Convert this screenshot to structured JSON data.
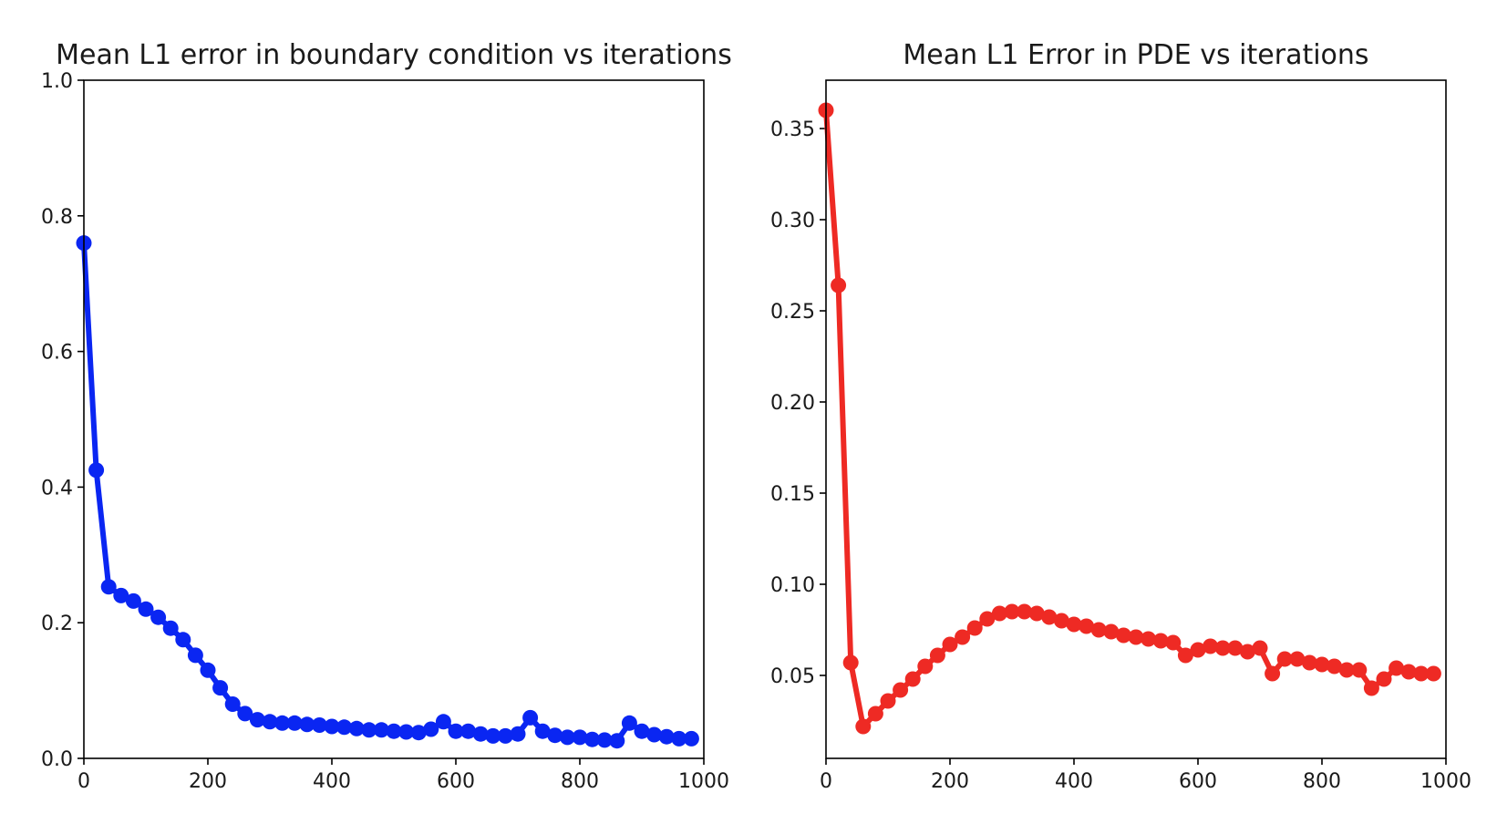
{
  "chart_data": [
    {
      "type": "line",
      "title": "Mean L1 error in boundary condition vs iterations",
      "xlabel": "",
      "ylabel": "",
      "xlim": [
        0,
        1000
      ],
      "ylim": [
        0.0,
        1.0
      ],
      "xticks": [
        "0",
        "200",
        "400",
        "600",
        "800",
        "1000"
      ],
      "yticks": [
        "0.0",
        "0.2",
        "0.4",
        "0.6",
        "0.8",
        "1.0"
      ],
      "grid": false,
      "marker": "circle",
      "color": "#0a26f2",
      "series": [
        {
          "x": [
            0,
            20,
            40,
            60,
            80,
            100,
            120,
            140,
            160,
            180,
            200,
            220,
            240,
            260,
            280,
            300,
            320,
            340,
            360,
            380,
            400,
            420,
            440,
            460,
            480,
            500,
            520,
            540,
            560,
            580,
            600,
            620,
            640,
            660,
            680,
            700,
            720,
            740,
            760,
            780,
            800,
            820,
            840,
            860,
            880,
            900,
            920,
            940,
            960,
            980
          ],
          "values": [
            0.76,
            0.425,
            0.253,
            0.24,
            0.232,
            0.22,
            0.208,
            0.192,
            0.175,
            0.152,
            0.13,
            0.104,
            0.08,
            0.066,
            0.057,
            0.054,
            0.052,
            0.052,
            0.05,
            0.049,
            0.047,
            0.046,
            0.044,
            0.042,
            0.042,
            0.04,
            0.039,
            0.038,
            0.043,
            0.054,
            0.04,
            0.04,
            0.036,
            0.033,
            0.033,
            0.036,
            0.06,
            0.04,
            0.034,
            0.031,
            0.031,
            0.028,
            0.027,
            0.026,
            0.052,
            0.04,
            0.035,
            0.032,
            0.029,
            0.029
          ]
        }
      ]
    },
    {
      "type": "line",
      "title": "Mean L1 Error in PDE vs iterations",
      "xlabel": "",
      "ylabel": "",
      "xlim": [
        0,
        1000
      ],
      "ylim": [
        0.0045,
        0.3765
      ],
      "xticks": [
        "0",
        "200",
        "400",
        "600",
        "800",
        "1000"
      ],
      "yticks": [
        "0.05",
        "0.10",
        "0.15",
        "0.20",
        "0.25",
        "0.30",
        "0.35"
      ],
      "grid": false,
      "marker": "circle",
      "color": "#ee2a24",
      "series": [
        {
          "x": [
            0,
            20,
            40,
            60,
            80,
            100,
            120,
            140,
            160,
            180,
            200,
            220,
            240,
            260,
            280,
            300,
            320,
            340,
            360,
            380,
            400,
            420,
            440,
            460,
            480,
            500,
            520,
            540,
            560,
            580,
            600,
            620,
            640,
            660,
            680,
            700,
            720,
            740,
            760,
            780,
            800,
            820,
            840,
            860,
            880,
            900,
            920,
            940,
            960,
            980
          ],
          "values": [
            0.36,
            0.264,
            0.057,
            0.022,
            0.029,
            0.036,
            0.042,
            0.048,
            0.055,
            0.061,
            0.067,
            0.071,
            0.076,
            0.081,
            0.084,
            0.085,
            0.085,
            0.084,
            0.082,
            0.08,
            0.078,
            0.077,
            0.075,
            0.074,
            0.072,
            0.071,
            0.07,
            0.069,
            0.068,
            0.061,
            0.064,
            0.066,
            0.065,
            0.065,
            0.063,
            0.065,
            0.051,
            0.059,
            0.059,
            0.057,
            0.056,
            0.055,
            0.053,
            0.053,
            0.043,
            0.048,
            0.054,
            0.052,
            0.051,
            0.051
          ]
        }
      ]
    }
  ]
}
